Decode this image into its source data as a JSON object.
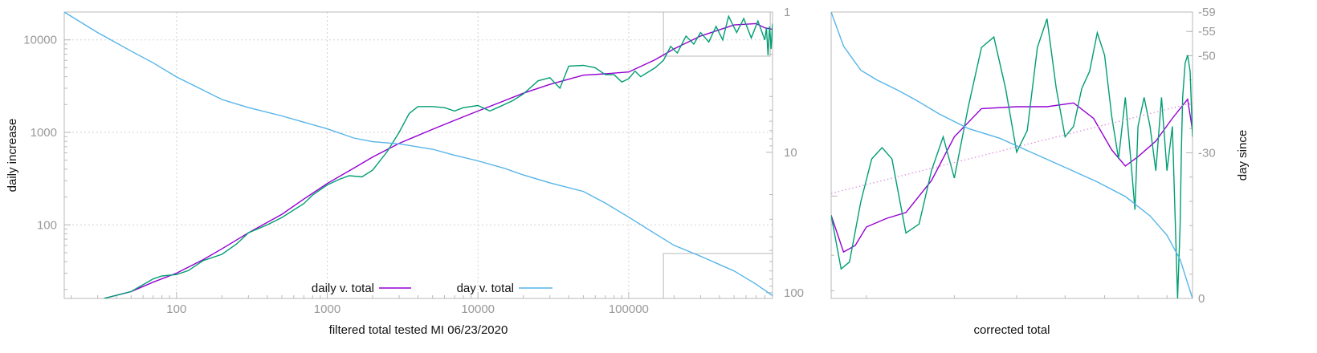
{
  "chart_data": [
    {
      "type": "line",
      "title": "",
      "xlabel": "filtered total tested MI 06/23/2020",
      "ylabel": "daily increase",
      "x_scale": "log",
      "y_scale": "log",
      "xlim": [
        18,
        900000
      ],
      "ylim": [
        16,
        20000
      ],
      "y2_scale": "log",
      "y2_reversed": true,
      "y2lim": [
        1,
        110
      ],
      "grid": true,
      "legend_position": "bottom-center",
      "x_ticks": [
        "100",
        "1000",
        "10000",
        "100000"
      ],
      "y_ticks": [
        "100",
        "1000",
        "10000"
      ],
      "y2_ticks": [
        "1",
        "10",
        "100"
      ],
      "x_tick_values": [
        100,
        1000,
        10000,
        100000
      ],
      "y_tick_values": [
        100,
        1000,
        10000
      ],
      "y2_tick_values": [
        1,
        10,
        100
      ],
      "series": [
        {
          "name": "daily v. total",
          "color": "#9400d3",
          "axis": "y",
          "points": [
            [
              33,
              16
            ],
            [
              50,
              19
            ],
            [
              70,
              24
            ],
            [
              100,
              30
            ],
            [
              150,
              42
            ],
            [
              200,
              55
            ],
            [
              300,
              82
            ],
            [
              500,
              130
            ],
            [
              700,
              190
            ],
            [
              1000,
              280
            ],
            [
              1500,
              410
            ],
            [
              2000,
              540
            ],
            [
              3000,
              760
            ],
            [
              5000,
              1080
            ],
            [
              7000,
              1350
            ],
            [
              10000,
              1700
            ],
            [
              15000,
              2200
            ],
            [
              20000,
              2650
            ],
            [
              30000,
              3300
            ],
            [
              50000,
              4150
            ],
            [
              70000,
              4300
            ],
            [
              100000,
              4500
            ],
            [
              150000,
              6100
            ],
            [
              200000,
              8000
            ],
            [
              300000,
              11000
            ],
            [
              500000,
              14500
            ],
            [
              700000,
              15000
            ],
            [
              800000,
              13500
            ],
            [
              900000,
              13000
            ]
          ]
        },
        {
          "name": "",
          "color": "#009e73",
          "axis": "y",
          "points": [
            [
              33,
              16
            ],
            [
              50,
              19
            ],
            [
              70,
              26
            ],
            [
              80,
              28
            ],
            [
              100,
              29
            ],
            [
              120,
              32
            ],
            [
              150,
              41
            ],
            [
              200,
              48
            ],
            [
              250,
              62
            ],
            [
              300,
              82
            ],
            [
              400,
              100
            ],
            [
              500,
              120
            ],
            [
              700,
              170
            ],
            [
              800,
              210
            ],
            [
              1000,
              270
            ],
            [
              1200,
              310
            ],
            [
              1400,
              340
            ],
            [
              1700,
              330
            ],
            [
              2000,
              390
            ],
            [
              2500,
              620
            ],
            [
              3000,
              1000
            ],
            [
              3500,
              1600
            ],
            [
              4000,
              1900
            ],
            [
              5000,
              1900
            ],
            [
              6000,
              1850
            ],
            [
              7000,
              1700
            ],
            [
              8000,
              1850
            ],
            [
              10000,
              1950
            ],
            [
              12000,
              1700
            ],
            [
              14000,
              1900
            ],
            [
              17000,
              2200
            ],
            [
              20000,
              2600
            ],
            [
              25000,
              3600
            ],
            [
              30000,
              3900
            ],
            [
              35000,
              3000
            ],
            [
              40000,
              5200
            ],
            [
              50000,
              5300
            ],
            [
              60000,
              5000
            ],
            [
              70000,
              4200
            ],
            [
              80000,
              4200
            ],
            [
              90000,
              3500
            ],
            [
              100000,
              3800
            ],
            [
              110000,
              4600
            ],
            [
              120000,
              4000
            ],
            [
              150000,
              5000
            ],
            [
              170000,
              6000
            ],
            [
              190000,
              8500
            ],
            [
              210000,
              7200
            ],
            [
              240000,
              11000
            ],
            [
              270000,
              9000
            ],
            [
              300000,
              12000
            ],
            [
              340000,
              9500
            ],
            [
              380000,
              14000
            ],
            [
              420000,
              10000
            ],
            [
              460000,
              18000
            ],
            [
              520000,
              12000
            ],
            [
              580000,
              17000
            ],
            [
              650000,
              10500
            ],
            [
              720000,
              16000
            ],
            [
              800000,
              10000
            ],
            [
              820000,
              13500
            ],
            [
              840000,
              6800
            ],
            [
              860000,
              14000
            ],
            [
              880000,
              8000
            ],
            [
              900000,
              15000
            ]
          ]
        },
        {
          "name": "day v. total",
          "color": "#56b4e9",
          "axis": "y2",
          "points": [
            [
              18,
              1
            ],
            [
              30,
              1.4
            ],
            [
              50,
              1.9
            ],
            [
              70,
              2.3
            ],
            [
              100,
              2.9
            ],
            [
              150,
              3.6
            ],
            [
              200,
              4.2
            ],
            [
              300,
              4.8
            ],
            [
              500,
              5.5
            ],
            [
              700,
              6.1
            ],
            [
              1000,
              6.8
            ],
            [
              1500,
              7.9
            ],
            [
              2000,
              8.4
            ],
            [
              3000,
              8.7
            ],
            [
              5000,
              9.5
            ],
            [
              7000,
              10.5
            ],
            [
              10000,
              11.5
            ],
            [
              15000,
              13
            ],
            [
              20000,
              14.5
            ],
            [
              30000,
              16.5
            ],
            [
              50000,
              19
            ],
            [
              70000,
              23
            ],
            [
              100000,
              29
            ],
            [
              150000,
              38
            ],
            [
              200000,
              46
            ],
            [
              300000,
              55
            ],
            [
              500000,
              70
            ],
            [
              700000,
              87
            ],
            [
              900000,
              105
            ]
          ]
        }
      ]
    },
    {
      "type": "line",
      "title": "",
      "xlabel": "corrected total",
      "ylabel": "day since",
      "x_scale": "log",
      "y_scale": "log",
      "xlim": [
        170000,
        900000
      ],
      "ylim": [
        6800,
        20000
      ],
      "y2lim": [
        0,
        -59
      ],
      "grid": false,
      "y2_ticks": [
        "-59",
        "-55",
        "-50",
        "-30",
        "0"
      ],
      "y2_tick_values": [
        -59,
        -55,
        -50,
        -30,
        0
      ],
      "series": [
        {
          "name": "",
          "color": "#9400d3",
          "axis": "y",
          "points": [
            [
              170000,
              9300
            ],
            [
              180000,
              8100
            ],
            [
              190000,
              8300
            ],
            [
              200000,
              8900
            ],
            [
              220000,
              9200
            ],
            [
              240000,
              9400
            ],
            [
              270000,
              10600
            ],
            [
              300000,
              12500
            ],
            [
              340000,
              13900
            ],
            [
              400000,
              14000
            ],
            [
              460000,
              14000
            ],
            [
              520000,
              14200
            ],
            [
              570000,
              13400
            ],
            [
              620000,
              11900
            ],
            [
              660000,
              11200
            ],
            [
              700000,
              11600
            ],
            [
              760000,
              12300
            ],
            [
              820000,
              13400
            ],
            [
              880000,
              14400
            ],
            [
              900000,
              12800
            ]
          ]
        },
        {
          "name": "",
          "color": "#009e73",
          "axis": "y",
          "points": [
            [
              170000,
              9300
            ],
            [
              178000,
              7600
            ],
            [
              185000,
              7800
            ],
            [
              195000,
              9800
            ],
            [
              205000,
              11500
            ],
            [
              215000,
              12000
            ],
            [
              225000,
              11500
            ],
            [
              240000,
              8700
            ],
            [
              255000,
              9000
            ],
            [
              270000,
              11000
            ],
            [
              285000,
              12500
            ],
            [
              300000,
              10700
            ],
            [
              320000,
              14000
            ],
            [
              340000,
              17500
            ],
            [
              360000,
              18200
            ],
            [
              380000,
              15000
            ],
            [
              400000,
              11800
            ],
            [
              420000,
              12800
            ],
            [
              440000,
              17500
            ],
            [
              460000,
              19500
            ],
            [
              480000,
              15000
            ],
            [
              500000,
              12500
            ],
            [
              520000,
              13000
            ],
            [
              540000,
              15000
            ],
            [
              560000,
              16000
            ],
            [
              580000,
              18500
            ],
            [
              600000,
              17000
            ],
            [
              620000,
              13500
            ],
            [
              640000,
              11500
            ],
            [
              660000,
              14500
            ],
            [
              680000,
              11000
            ],
            [
              690000,
              9500
            ],
            [
              700000,
              13000
            ],
            [
              720000,
              14500
            ],
            [
              740000,
              13000
            ],
            [
              760000,
              11000
            ],
            [
              780000,
              14500
            ],
            [
              800000,
              11000
            ],
            [
              820000,
              13000
            ],
            [
              840000,
              6800
            ],
            [
              850000,
              9000
            ],
            [
              855000,
              12000
            ],
            [
              860000,
              14500
            ],
            [
              870000,
              16500
            ],
            [
              880000,
              17000
            ],
            [
              890000,
              16000
            ],
            [
              900000,
              12500
            ]
          ]
        },
        {
          "name": "",
          "color": "#56b4e9",
          "axis": "y2",
          "points": [
            [
              170000,
              -59
            ],
            [
              180000,
              -52
            ],
            [
              195000,
              -47
            ],
            [
              210000,
              -45
            ],
            [
              230000,
              -43
            ],
            [
              250000,
              -41
            ],
            [
              280000,
              -38
            ],
            [
              320000,
              -35
            ],
            [
              370000,
              -33
            ],
            [
              430000,
              -30
            ],
            [
              500000,
              -27
            ],
            [
              580000,
              -24
            ],
            [
              660000,
              -21
            ],
            [
              740000,
              -17
            ],
            [
              800000,
              -13
            ],
            [
              850000,
              -8
            ],
            [
              900000,
              0
            ]
          ]
        },
        {
          "name": "",
          "color": "#dd88dd",
          "style": "dotted",
          "axis": "y",
          "points": [
            [
              170000,
              10100
            ],
            [
              900000,
              14200
            ]
          ]
        }
      ]
    }
  ]
}
